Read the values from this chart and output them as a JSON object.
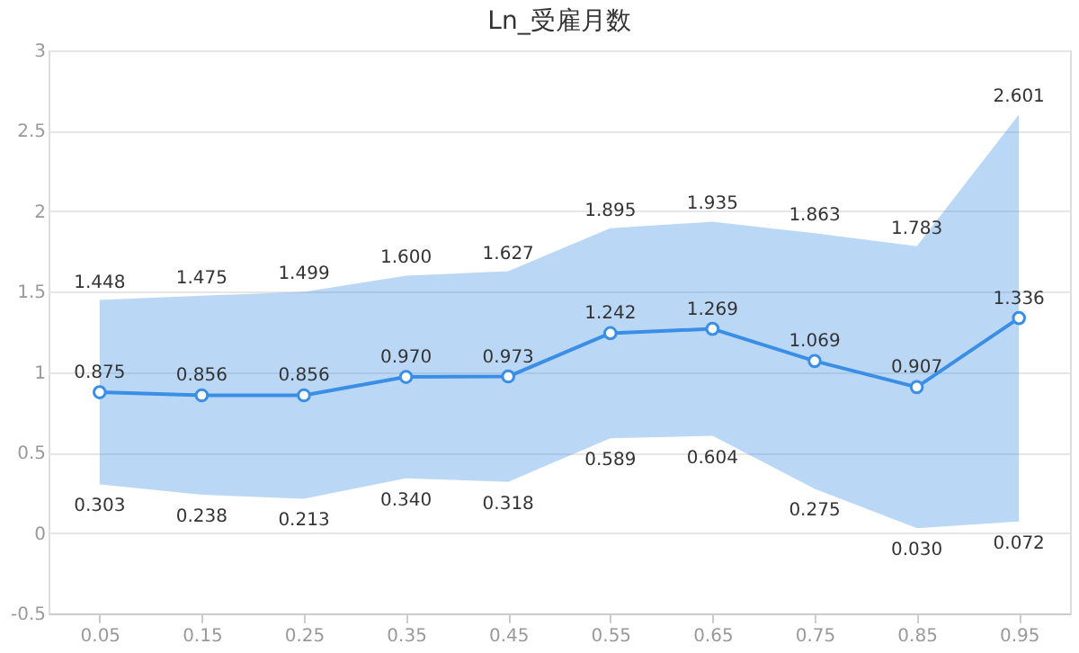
{
  "chart_data": {
    "type": "line",
    "title": "Ln_受雇月数",
    "categories": [
      "0.05",
      "0.15",
      "0.25",
      "0.35",
      "0.45",
      "0.55",
      "0.65",
      "0.75",
      "0.85",
      "0.95"
    ],
    "series": [
      {
        "color": "#3a8ee6",
        "values": [
          0.875,
          0.856,
          0.856,
          0.97,
          0.973,
          1.242,
          1.269,
          1.069,
          0.907,
          1.336
        ],
        "value_labels": [
          "0.875",
          "0.856",
          "0.856",
          "0.970",
          "0.973",
          "1.242",
          "1.269",
          "1.069",
          "0.907",
          "1.336"
        ],
        "lower": [
          0.303,
          0.238,
          0.213,
          0.34,
          0.318,
          0.589,
          0.604,
          0.275,
          0.03,
          0.072
        ],
        "upper": [
          1.448,
          1.475,
          1.499,
          1.6,
          1.627,
          1.895,
          1.935,
          1.863,
          1.783,
          2.601
        ]
      }
    ],
    "annotations": [
      {
        "text": "1.448",
        "x": "0.05",
        "y": 1.448
      },
      {
        "text": "1.475",
        "x": "0.15",
        "y": 1.475
      },
      {
        "text": "1.499",
        "x": "0.25",
        "y": 1.499
      },
      {
        "text": "1.600",
        "x": "0.35",
        "y": 1.6
      },
      {
        "text": "1.627",
        "x": "0.45",
        "y": 1.627
      },
      {
        "text": "1.895",
        "x": "0.55",
        "y": 1.895
      },
      {
        "text": "1.935",
        "x": "0.65",
        "y": 1.935
      },
      {
        "text": "1.863",
        "x": "0.75",
        "y": 1.863
      },
      {
        "text": "1.783",
        "x": "0.85",
        "y": 1.783
      },
      {
        "text": "2.601",
        "x": "0.95",
        "y": 2.601
      },
      {
        "text": "0.303",
        "x": "0.05",
        "y": 0.303
      },
      {
        "text": "0.238",
        "x": "0.15",
        "y": 0.238
      },
      {
        "text": "0.213",
        "x": "0.25",
        "y": 0.213
      },
      {
        "text": "0.340",
        "x": "0.35",
        "y": 0.34
      },
      {
        "text": "0.318",
        "x": "0.45",
        "y": 0.318
      },
      {
        "text": "0.589",
        "x": "0.55",
        "y": 0.589
      },
      {
        "text": "0.604",
        "x": "0.65",
        "y": 0.604
      },
      {
        "text": "0.275",
        "x": "0.75",
        "y": 0.275
      },
      {
        "text": "0.030",
        "x": "0.85",
        "y": 0.03
      },
      {
        "text": "0.072",
        "x": "0.95",
        "y": 0.072
      }
    ],
    "ylim": [
      -0.5,
      3
    ],
    "yticks": [
      -0.5,
      0,
      0.5,
      1,
      1.5,
      2,
      2.5,
      3
    ],
    "grid": "y",
    "marker": "circle",
    "line_style": "solid"
  }
}
